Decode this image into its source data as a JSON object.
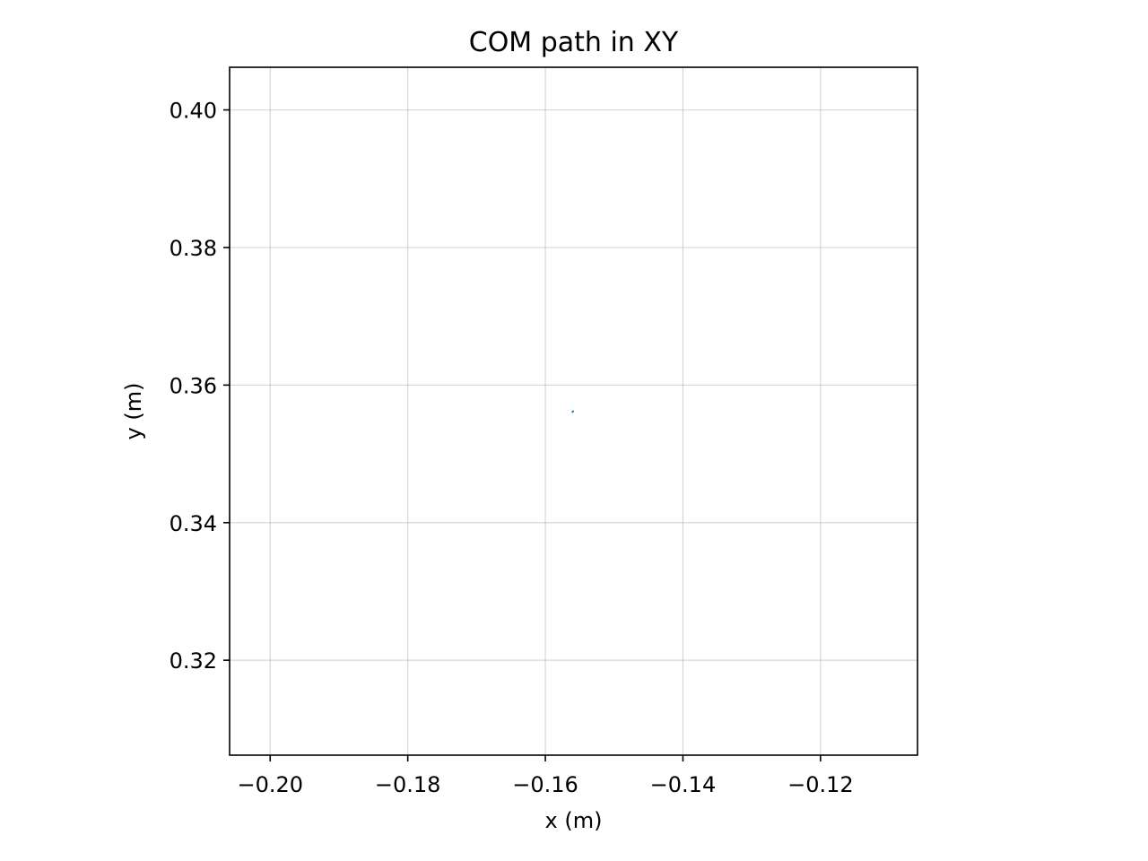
{
  "chart_data": {
    "type": "line",
    "title": "COM path in XY",
    "xlabel": "x (m)",
    "ylabel": "y (m)",
    "xlim": [
      -0.2059,
      -0.1059
    ],
    "ylim": [
      0.3062,
      0.4062
    ],
    "xticks": [
      -0.2,
      -0.18,
      -0.16,
      -0.14,
      -0.12
    ],
    "xtick_labels": [
      "−0.20",
      "−0.18",
      "−0.16",
      "−0.14",
      "−0.12"
    ],
    "yticks": [
      0.32,
      0.34,
      0.36,
      0.38,
      0.4
    ],
    "ytick_labels": [
      "0.32",
      "0.34",
      "0.36",
      "0.38",
      "0.40"
    ],
    "grid": true,
    "series": [
      {
        "color": "#1f77b4",
        "x": [
          -0.15605,
          -0.156,
          -0.15596
        ],
        "y": [
          0.3561,
          0.35615,
          0.3562
        ]
      }
    ]
  }
}
